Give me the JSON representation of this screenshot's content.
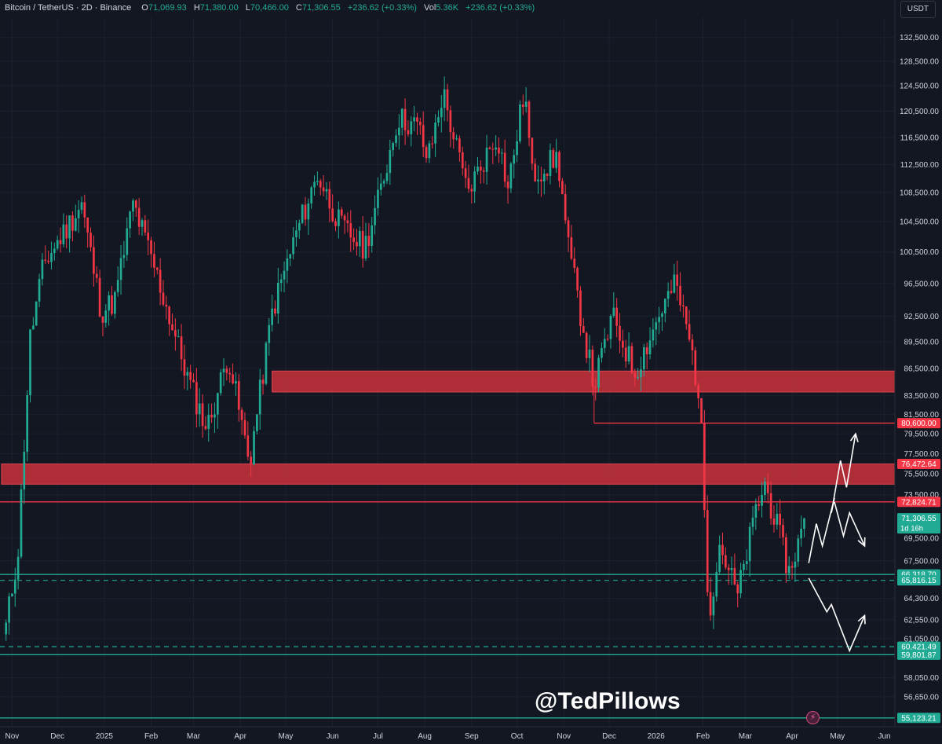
{
  "header": {
    "symbol": "Bitcoin / TetherUS · 2D · Binance",
    "open_label": "O",
    "open": "71,069.93",
    "high_label": "H",
    "high": "71,380.00",
    "low_label": "L",
    "low": "70,466.00",
    "close_label": "C",
    "close": "71,306.55",
    "change": "+236.62 (+0.33%)",
    "vol_label": "Vol",
    "vol": "5.36K",
    "vol_change": "+236.62 (+0.33%)"
  },
  "currency": "USDT",
  "watermark": "@TedPillows",
  "colors": {
    "up": "#22ab94",
    "down": "#f23645",
    "background": "#131722",
    "zone": "#c0303a",
    "support": "#22ab94",
    "text": "#d1d4dc"
  },
  "chart_data": {
    "type": "candlestick",
    "title": "Bitcoin / TetherUS · 2D · Binance",
    "interval": "2D",
    "x_ticks": [
      "Nov",
      "Dec",
      "2025",
      "Feb",
      "Mar",
      "Apr",
      "May",
      "Jun",
      "Jul",
      "Aug",
      "Sep",
      "Oct",
      "Nov",
      "Dec",
      "2026",
      "Feb",
      "Mar",
      "Apr",
      "May",
      "Jun"
    ],
    "y_ticks": [
      "132,500.00",
      "128,500.00",
      "124,500.00",
      "120,500.00",
      "116,500.00",
      "112,500.00",
      "108,500.00",
      "104,500.00",
      "100,500.00",
      "96,500.00",
      "92,500.00",
      "89,500.00",
      "86,500.00",
      "83,500.00",
      "81,500.00",
      "79,500.00",
      "77,500.00",
      "75,500.00",
      "73,500.00",
      "69,500.00",
      "67,500.00",
      "64,300.00",
      "62,550.00",
      "61,050.00",
      "58,050.00",
      "56,650.00"
    ],
    "log_scale": true,
    "y_range": [
      54500,
      136000
    ],
    "key_points": [
      {
        "date": "2024-10-28",
        "price": 62000
      },
      {
        "date": "2024-11-05",
        "price": 68500
      },
      {
        "date": "2024-11-13",
        "price": 90000
      },
      {
        "date": "2024-11-22",
        "price": 99000
      },
      {
        "date": "2024-12-05",
        "price": 103000
      },
      {
        "date": "2024-12-17",
        "price": 107000
      },
      {
        "date": "2024-12-30",
        "price": 93000
      },
      {
        "date": "2025-01-08",
        "price": 94500
      },
      {
        "date": "2025-01-20",
        "price": 107000
      },
      {
        "date": "2025-02-04",
        "price": 98000
      },
      {
        "date": "2025-02-26",
        "price": 85000
      },
      {
        "date": "2025-03-10",
        "price": 80000
      },
      {
        "date": "2025-03-24",
        "price": 88000
      },
      {
        "date": "2025-04-07",
        "price": 76500
      },
      {
        "date": "2025-04-22",
        "price": 93000
      },
      {
        "date": "2025-05-08",
        "price": 103000
      },
      {
        "date": "2025-05-22",
        "price": 111000
      },
      {
        "date": "2025-06-06",
        "price": 104000
      },
      {
        "date": "2025-06-22",
        "price": 101000
      },
      {
        "date": "2025-07-02",
        "price": 108000
      },
      {
        "date": "2025-07-14",
        "price": 119500
      },
      {
        "date": "2025-07-28",
        "price": 118000
      },
      {
        "date": "2025-08-03",
        "price": 113000
      },
      {
        "date": "2025-08-13",
        "price": 123500
      },
      {
        "date": "2025-08-29",
        "price": 108500
      },
      {
        "date": "2025-09-18",
        "price": 117000
      },
      {
        "date": "2025-09-25",
        "price": 109000
      },
      {
        "date": "2025-10-06",
        "price": 124000
      },
      {
        "date": "2025-10-11",
        "price": 111000
      },
      {
        "date": "2025-10-28",
        "price": 113500
      },
      {
        "date": "2025-11-04",
        "price": 101000
      },
      {
        "date": "2025-11-21",
        "price": 84500
      },
      {
        "date": "2025-12-03",
        "price": 92500
      },
      {
        "date": "2025-12-18",
        "price": 86000
      },
      {
        "date": "2026-01-05",
        "price": 93500
      },
      {
        "date": "2026-01-14",
        "price": 96500
      },
      {
        "date": "2026-01-24",
        "price": 89000
      },
      {
        "date": "2026-01-30",
        "price": 83000
      },
      {
        "date": "2026-02-05",
        "price": 63000
      },
      {
        "date": "2026-02-12",
        "price": 69000
      },
      {
        "date": "2026-02-24",
        "price": 64500
      },
      {
        "date": "2026-03-08",
        "price": 72000
      },
      {
        "date": "2026-03-14",
        "price": 74500
      },
      {
        "date": "2026-03-22",
        "price": 70500
      },
      {
        "date": "2026-03-30",
        "price": 66500
      },
      {
        "date": "2026-04-10",
        "price": 71306.55
      }
    ],
    "resistance_zones": [
      {
        "label": "resistance-zone-upper",
        "from": 83900,
        "to": 86200,
        "start_date": "2025-04-22"
      },
      {
        "label": "resistance-zone-lower",
        "from": 74500,
        "to": 76472.64,
        "start_date": "2024-10-25"
      }
    ],
    "lines": [
      {
        "label": "line-80600",
        "price": 80600,
        "style": "solid",
        "color": "#f23645",
        "start_date": "2025-11-21"
      },
      {
        "label": "line-72824",
        "price": 72824.71,
        "style": "solid",
        "color": "#f23645"
      },
      {
        "label": "line-66318",
        "price": 66318.7,
        "style": "solid",
        "color": "#22ab94"
      },
      {
        "label": "line-65816",
        "price": 65816.15,
        "style": "dashed",
        "color": "#22ab94"
      },
      {
        "label": "line-60421",
        "price": 60421.49,
        "style": "dashed",
        "color": "#22ab94"
      },
      {
        "label": "line-59801",
        "price": 59801.87,
        "style": "solid",
        "color": "#22ab94"
      },
      {
        "label": "line-55123",
        "price": 55123.21,
        "style": "solid",
        "color": "#22ab94"
      }
    ],
    "price_labels": [
      {
        "text": "80,600.00",
        "price": 80600,
        "color": "#f23645"
      },
      {
        "text": "76,472.64",
        "price": 76472.64,
        "color": "#f23645"
      },
      {
        "text": "72,824.71",
        "price": 72824.71,
        "color": "#f23645"
      },
      {
        "text": "71,306.55",
        "sub": "1d 16h",
        "price": 71306.55,
        "color": "#22ab94"
      },
      {
        "text": "66,318.70",
        "price": 66318.7,
        "color": "#22ab94"
      },
      {
        "text": "65,816.15",
        "price": 65816.15,
        "color": "#22ab94"
      },
      {
        "text": "60,421.49",
        "price": 60421.49,
        "color": "#22ab94"
      },
      {
        "text": "59,801.87",
        "price": 59801.87,
        "color": "#22ab94"
      },
      {
        "text": "55,123.21",
        "price": 55123.21,
        "color": "#22ab94"
      }
    ],
    "projection_bullish": [
      {
        "date": "2026-04-12",
        "price": 67300
      },
      {
        "date": "2026-04-17",
        "price": 70800
      },
      {
        "date": "2026-04-21",
        "price": 68800
      },
      {
        "date": "2026-04-29",
        "price": 73200
      },
      {
        "date": "2026-04-27",
        "price": 71800
      },
      {
        "date": "2026-05-03",
        "price": 76800
      },
      {
        "date": "2026-05-07",
        "price": 74200
      },
      {
        "date": "2026-05-13",
        "price": 79500
      }
    ],
    "projection_pullback": [
      {
        "date": "2026-04-29",
        "price": 72800
      },
      {
        "date": "2026-05-05",
        "price": 69700
      },
      {
        "date": "2026-05-09",
        "price": 71800
      },
      {
        "date": "2026-05-19",
        "price": 68800
      }
    ],
    "projection_bearish": [
      {
        "date": "2026-04-12",
        "price": 66000
      },
      {
        "date": "2026-04-24",
        "price": 63200
      },
      {
        "date": "2026-04-27",
        "price": 63800
      },
      {
        "date": "2026-05-09",
        "price": 60100
      },
      {
        "date": "2026-05-13",
        "price": 61200
      },
      {
        "date": "2026-05-19",
        "price": 62900
      }
    ]
  }
}
